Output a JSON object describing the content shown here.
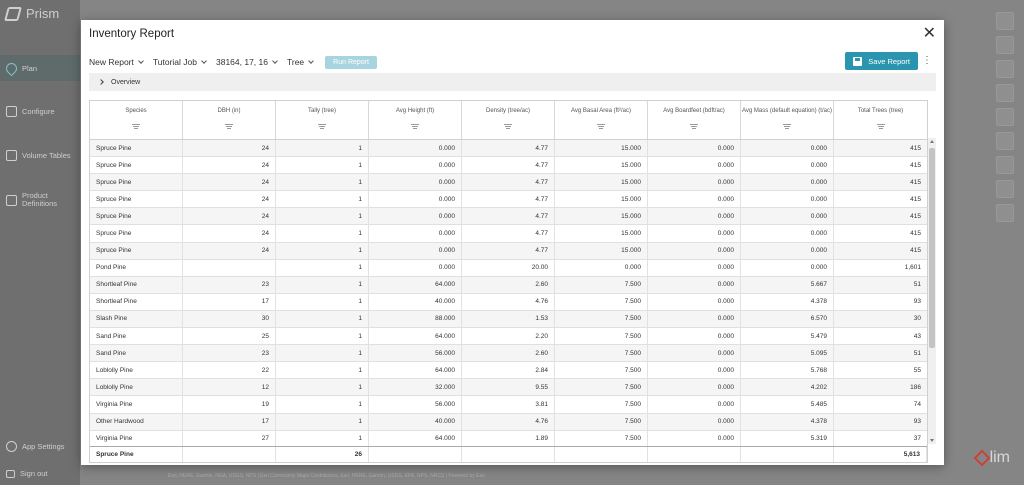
{
  "app": {
    "brand": "Prism",
    "nav": [
      {
        "label": "Plan"
      },
      {
        "label": "Configure"
      },
      {
        "label": "Volume Tables"
      },
      {
        "label": "Product Definitions"
      }
    ],
    "settings_label": "App Settings",
    "signout_label": "Sign out",
    "footer_text": "Esri, HERE, Garmin, NGA, USGS, NPS | Esri Community Maps Contributors, Esri, HERE, Garmin, USGS, EPA, NPS, NRCS | Powered by Esri",
    "lim_label": "lim"
  },
  "modal": {
    "title": "Inventory Report",
    "close_glyph": "✕",
    "toolbar": {
      "report_select": "New Report",
      "job_select": "Tutorial Job",
      "stand_select": "38164, 17, 16",
      "level_select": "Tree",
      "run_label": "Run Report",
      "save_label": "Save Report",
      "more_glyph": "⋮"
    },
    "overview_label": "Overview"
  },
  "grid": {
    "columns": [
      "Species",
      "DBH (in)",
      "Tally (tree)",
      "Avg Height (ft)",
      "Density (tree/ac)",
      "Avg Basal Area (ft²/ac)",
      "Avg Boardfeet (bdft/ac)",
      "Avg Mass (default equation) (t/ac)",
      "Total Trees (tree)"
    ],
    "rows": [
      [
        "Spruce Pine",
        "24",
        "1",
        "0.000",
        "4.77",
        "15.000",
        "0.000",
        "0.000",
        "415"
      ],
      [
        "Spruce Pine",
        "24",
        "1",
        "0.000",
        "4.77",
        "15.000",
        "0.000",
        "0.000",
        "415"
      ],
      [
        "Spruce Pine",
        "24",
        "1",
        "0.000",
        "4.77",
        "15.000",
        "0.000",
        "0.000",
        "415"
      ],
      [
        "Spruce Pine",
        "24",
        "1",
        "0.000",
        "4.77",
        "15.000",
        "0.000",
        "0.000",
        "415"
      ],
      [
        "Spruce Pine",
        "24",
        "1",
        "0.000",
        "4.77",
        "15.000",
        "0.000",
        "0.000",
        "415"
      ],
      [
        "Spruce Pine",
        "24",
        "1",
        "0.000",
        "4.77",
        "15.000",
        "0.000",
        "0.000",
        "415"
      ],
      [
        "Spruce Pine",
        "24",
        "1",
        "0.000",
        "4.77",
        "15.000",
        "0.000",
        "0.000",
        "415"
      ],
      [
        "Pond Pine",
        "",
        "1",
        "0.000",
        "20.00",
        "0.000",
        "0.000",
        "0.000",
        "1,601"
      ],
      [
        "Shortleaf Pine",
        "23",
        "1",
        "64.000",
        "2.60",
        "7.500",
        "0.000",
        "5.667",
        "51"
      ],
      [
        "Shortleaf Pine",
        "17",
        "1",
        "40.000",
        "4.76",
        "7.500",
        "0.000",
        "4.378",
        "93"
      ],
      [
        "Slash Pine",
        "30",
        "1",
        "88.000",
        "1.53",
        "7.500",
        "0.000",
        "6.570",
        "30"
      ],
      [
        "Sand Pine",
        "25",
        "1",
        "64.000",
        "2.20",
        "7.500",
        "0.000",
        "5.479",
        "43"
      ],
      [
        "Sand Pine",
        "23",
        "1",
        "56.000",
        "2.60",
        "7.500",
        "0.000",
        "5.095",
        "51"
      ],
      [
        "Loblolly Pine",
        "22",
        "1",
        "64.000",
        "2.84",
        "7.500",
        "0.000",
        "5.768",
        "55"
      ],
      [
        "Loblolly Pine",
        "12",
        "1",
        "32.000",
        "9.55",
        "7.500",
        "0.000",
        "4.202",
        "186"
      ],
      [
        "Virginia Pine",
        "19",
        "1",
        "56.000",
        "3.81",
        "7.500",
        "0.000",
        "5.485",
        "74"
      ],
      [
        "Other Hardwood",
        "17",
        "1",
        "40.000",
        "4.76",
        "7.500",
        "0.000",
        "4.378",
        "93"
      ],
      [
        "Virginia Pine",
        "27",
        "1",
        "64.000",
        "1.89",
        "7.500",
        "0.000",
        "5.319",
        "37"
      ]
    ],
    "footer": [
      "Spruce Pine",
      "",
      "26",
      "",
      "",
      "",
      "",
      "",
      "5,613"
    ]
  }
}
